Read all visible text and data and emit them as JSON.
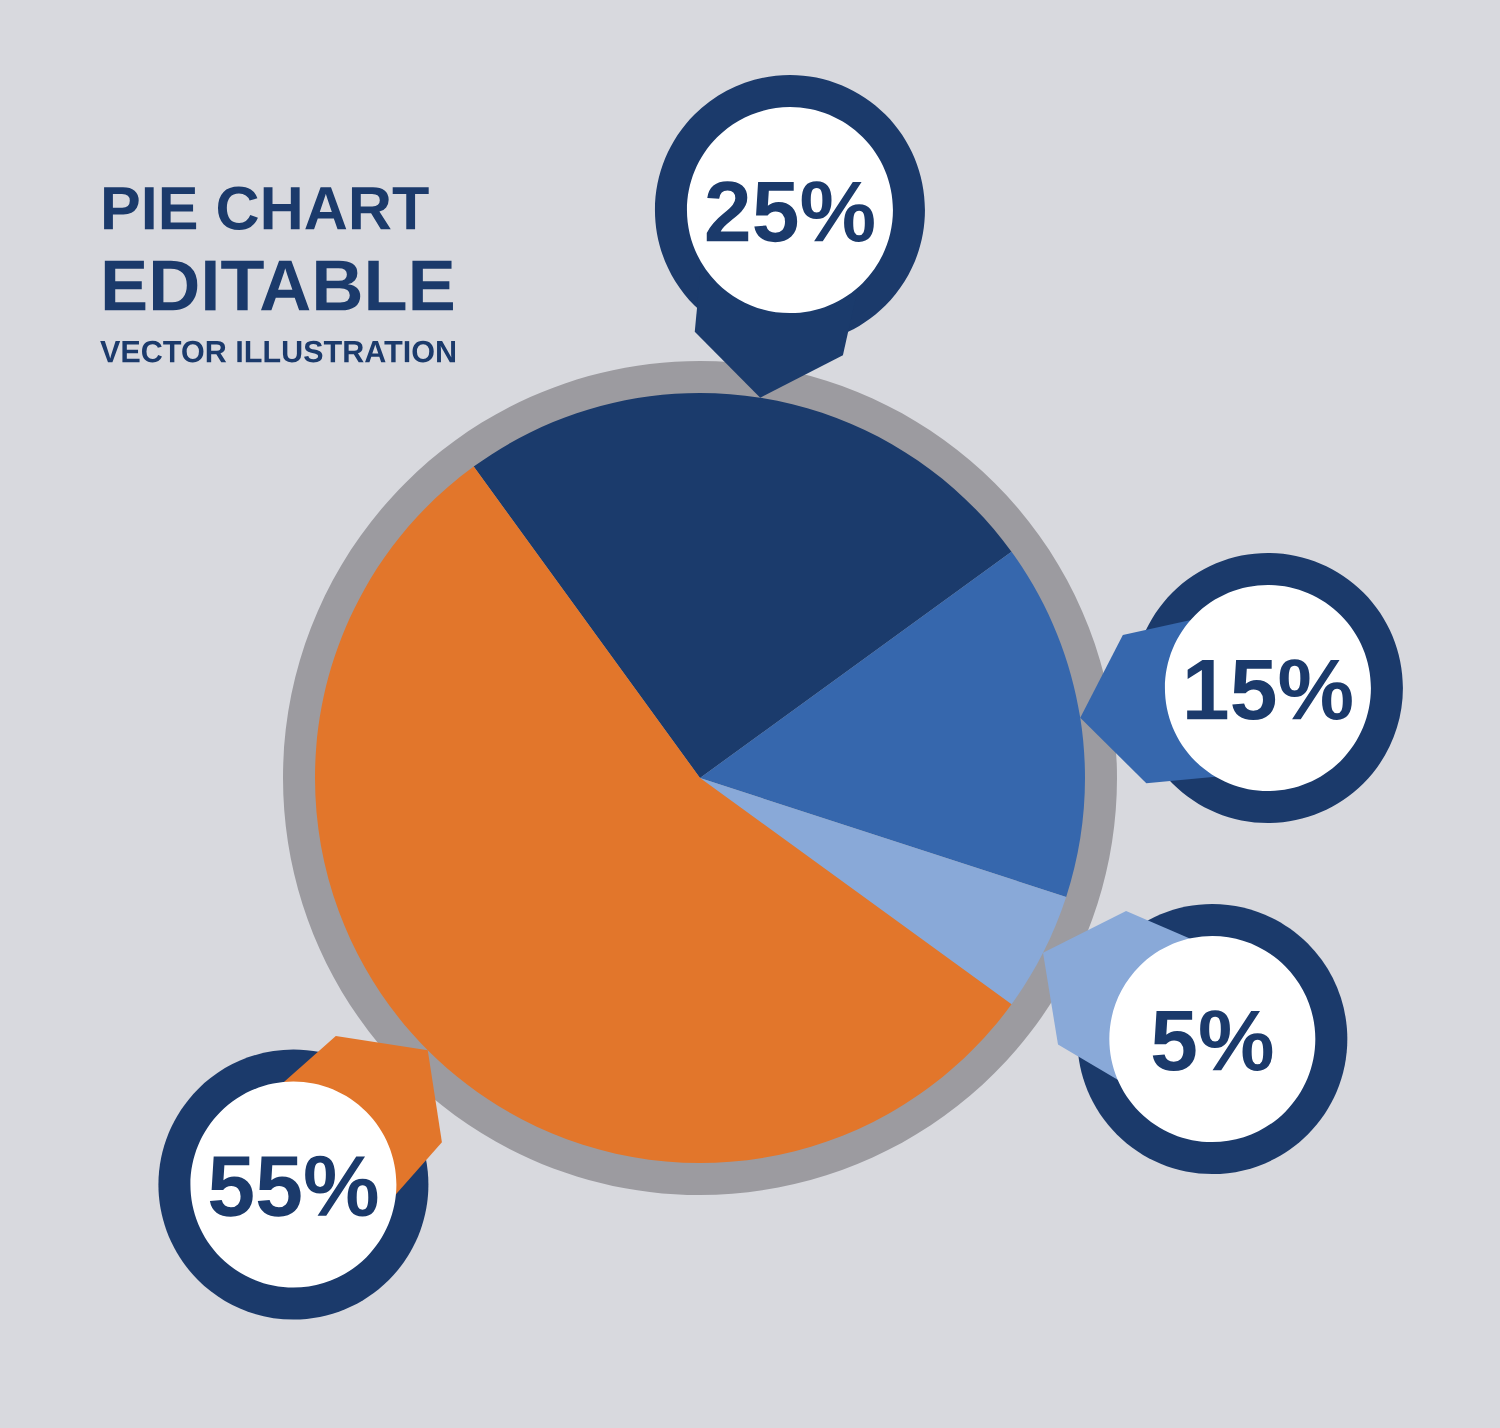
{
  "chart_data": {
    "type": "pie",
    "title": "PIE CHART",
    "subtitle": "EDITABLE",
    "annotations": [
      "VECTOR ILLUSTRATION"
    ],
    "categories": [
      null,
      null,
      null,
      null
    ],
    "values": [
      25,
      15,
      5,
      55
    ],
    "colors": [
      "#1b3b6c",
      "#3667ad",
      "#89a9d8",
      "#e2762b"
    ],
    "value_labels": [
      "25%",
      "15%",
      "5%",
      "55%"
    ]
  }
}
